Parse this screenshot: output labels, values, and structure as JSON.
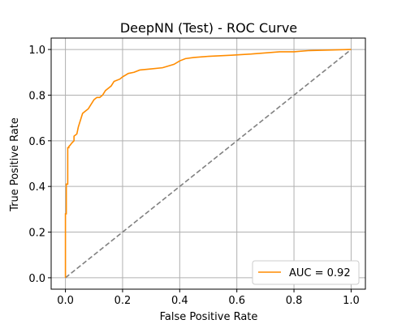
{
  "chart_data": {
    "type": "line",
    "title": "DeepNN (Test) - ROC Curve",
    "xlabel": "False Positive Rate",
    "ylabel": "True Positive Rate",
    "xlim": [
      -0.05,
      1.05
    ],
    "ylim": [
      -0.05,
      1.05
    ],
    "xticks": [
      "0.0",
      "0.2",
      "0.4",
      "0.6",
      "0.8",
      "1.0"
    ],
    "yticks": [
      "0.0",
      "0.2",
      "0.4",
      "0.6",
      "0.8",
      "1.0"
    ],
    "xtick_values": [
      0,
      0.2,
      0.4,
      0.6,
      0.8,
      1.0
    ],
    "ytick_values": [
      0,
      0.2,
      0.4,
      0.6,
      0.8,
      1.0
    ],
    "grid": true,
    "legend_position": "bottom-right",
    "series": [
      {
        "name": "AUC = 0.92",
        "color": "#ff8c00",
        "style": "solid",
        "x": [
          0,
          0,
          0.003,
          0.003,
          0.008,
          0.008,
          0.012,
          0.012,
          0.016,
          0.022,
          0.03,
          0.03,
          0.04,
          0.045,
          0.05,
          0.055,
          0.06,
          0.07,
          0.08,
          0.09,
          0.1,
          0.11,
          0.12,
          0.13,
          0.14,
          0.15,
          0.16,
          0.17,
          0.19,
          0.2,
          0.22,
          0.24,
          0.26,
          0.3,
          0.34,
          0.38,
          0.4,
          0.42,
          0.45,
          0.5,
          0.58,
          0.65,
          0.7,
          0.75,
          0.8,
          0.85,
          1.0
        ],
        "y": [
          0,
          0.28,
          0.28,
          0.41,
          0.41,
          0.57,
          0.57,
          0.575,
          0.58,
          0.59,
          0.6,
          0.62,
          0.63,
          0.66,
          0.68,
          0.7,
          0.72,
          0.73,
          0.74,
          0.76,
          0.78,
          0.79,
          0.79,
          0.8,
          0.82,
          0.83,
          0.84,
          0.86,
          0.87,
          0.88,
          0.895,
          0.9,
          0.91,
          0.915,
          0.92,
          0.935,
          0.95,
          0.96,
          0.965,
          0.97,
          0.975,
          0.98,
          0.985,
          0.99,
          0.99,
          0.995,
          1.0
        ]
      },
      {
        "name": "",
        "color": "#808080",
        "style": "dashed",
        "x": [
          0,
          1
        ],
        "y": [
          0,
          1
        ]
      }
    ]
  }
}
